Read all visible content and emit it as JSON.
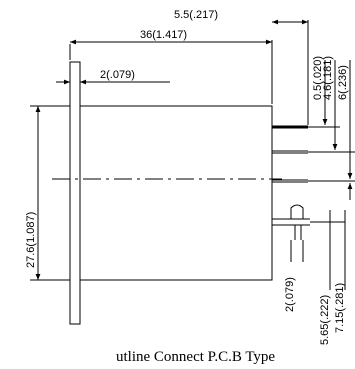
{
  "dimensions": {
    "total_length": "36(1.417)",
    "pin_offset": "5.5(.217)",
    "flange_thickness": "2(.079)",
    "body_height": "27.6(1.087)",
    "pin_gap": "0.5(.020)",
    "pin_span_a": "4.6(.181)",
    "pin_span_b": "6(.236)",
    "tab_width": "2(.079)",
    "tab_offset_a": "5.65(.222)",
    "tab_offset_b": "7.15(.281)"
  },
  "caption": "utline Connect P.C.B Type"
}
